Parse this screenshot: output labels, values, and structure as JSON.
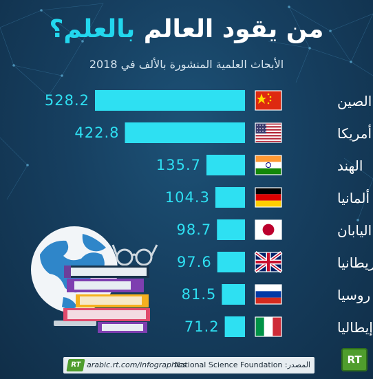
{
  "title": {
    "prefix": "من يقود العالم ",
    "accent": "بالعلم؟"
  },
  "subtitle": "الأبحاث العلمية المنشورة بالألف في 2018",
  "chart_data": {
    "type": "bar",
    "orientation": "horizontal",
    "title": "من يقود العالم بالعلم؟",
    "subtitle": "الأبحاث العلمية المنشورة بالألف في 2018",
    "categories": [
      "الصين",
      "أمريكا",
      "الهند",
      "ألمانيا",
      "اليابان",
      "بريطانيا",
      "روسيا",
      "إيطاليا"
    ],
    "values": [
      528.2,
      422.8,
      135.7,
      104.3,
      98.7,
      97.6,
      81.5,
      71.2
    ],
    "value_labels": [
      "528.2",
      "422.8",
      "135.7",
      "104.3",
      "98.7",
      "97.6",
      "81.5",
      "71.2"
    ],
    "flags": [
      "china-flag-icon",
      "usa-flag-icon",
      "india-flag-icon",
      "germany-flag-icon",
      "japan-flag-icon",
      "uk-flag-icon",
      "russia-flag-icon",
      "italy-flag-icon"
    ],
    "bar_color": "#2ee0f2",
    "label_color": "#2ee0f2"
  },
  "footer": {
    "url": "arabic.rt.com/infographics",
    "source": "المصدر: National Science Foundation",
    "logo_text": "RT"
  },
  "colors": {
    "background": "#163f60",
    "accent": "#22d7ee",
    "text": "#ffffff"
  }
}
